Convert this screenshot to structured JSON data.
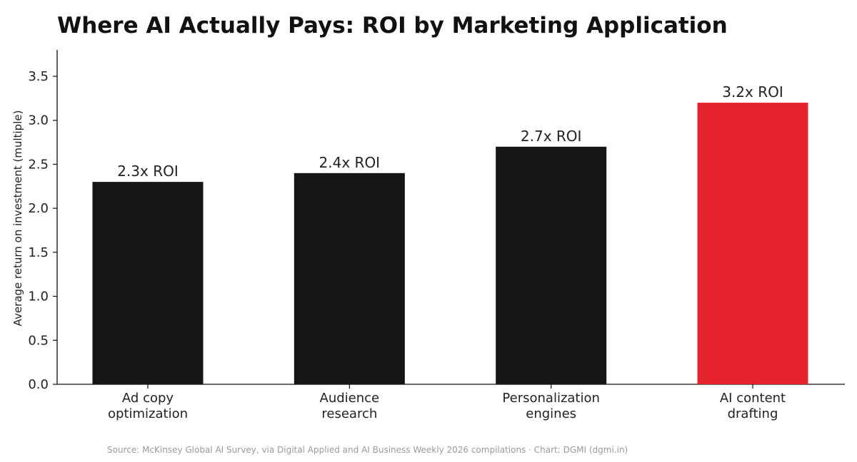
{
  "chart_data": {
    "type": "bar",
    "title": "Where AI Actually Pays: ROI by Marketing Application",
    "ylabel": "Average return on investment (multiple)",
    "xlabel": "",
    "categories": [
      [
        "Ad copy",
        "optimization"
      ],
      [
        "Audience",
        "research"
      ],
      [
        "Personalization",
        "engines"
      ],
      [
        "AI content",
        "drafting"
      ]
    ],
    "values": [
      2.3,
      2.4,
      2.7,
      3.2
    ],
    "value_labels": [
      "2.3x ROI",
      "2.4x ROI",
      "2.7x ROI",
      "3.2x ROI"
    ],
    "highlight_index": 3,
    "colors": {
      "bar": "#151515",
      "highlight": "#e5232d",
      "axis": "#111111"
    },
    "ylim": [
      0,
      3.8
    ],
    "yticks": [
      0.0,
      0.5,
      1.0,
      1.5,
      2.0,
      2.5,
      3.0,
      3.5
    ],
    "ytick_labels": [
      "0.0",
      "0.5",
      "1.0",
      "1.5",
      "2.0",
      "2.5",
      "3.0",
      "3.5"
    ],
    "grid": false,
    "legend": "none",
    "source": "Source: McKinsey Global AI Survey, via Digital Applied and AI Business Weekly 2026 compilations · Chart: DGMI (dgmi.in)"
  }
}
